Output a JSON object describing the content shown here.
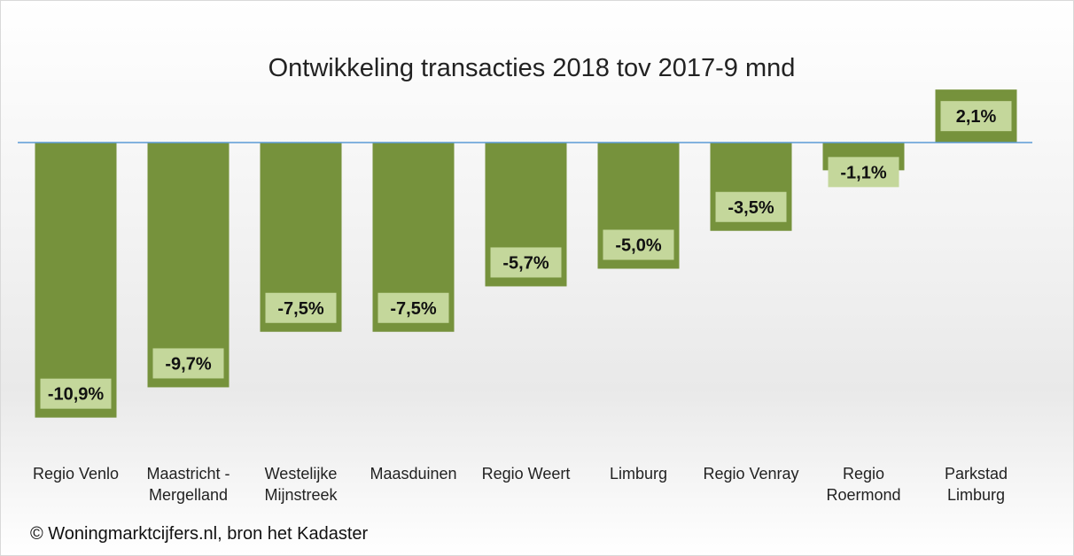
{
  "chart_data": {
    "type": "bar",
    "title": "Ontwikkeling transacties 2018 tov 2017-9 mnd",
    "categories": [
      "Regio Venlo",
      "Maastricht - Mergelland",
      "Westelijke Mijnstreek",
      "Maasduinen",
      "Regio Weert",
      "Limburg",
      "Regio Venray",
      "Regio Roermond",
      "Parkstad Limburg"
    ],
    "values": [
      -10.9,
      -9.7,
      -7.5,
      -7.5,
      -5.7,
      -5.0,
      -3.5,
      -1.1,
      2.1
    ],
    "value_labels": [
      "-10,9%",
      "-9,7%",
      "-7,5%",
      "-7,5%",
      "-5,7%",
      "-5,0%",
      "-3,5%",
      "-1,1%",
      "2,1%"
    ],
    "color": "#76923c",
    "label_color": "#c4d79b",
    "zero_line_color": "#5b9bd5",
    "ylim": [
      -12,
      3
    ],
    "footnote": "© Woningmarktcijfers.nl, bron het Kadaster"
  }
}
